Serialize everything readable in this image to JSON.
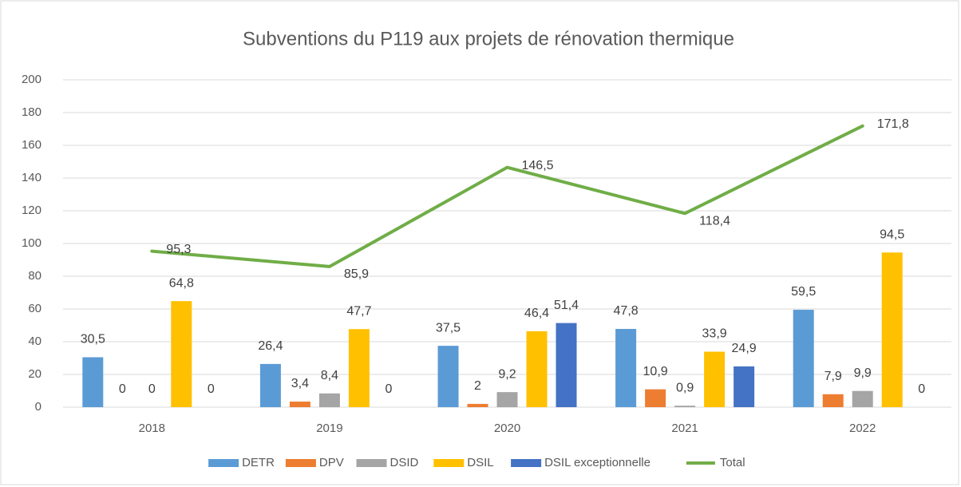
{
  "chart_data": {
    "type": "bar",
    "title": "Subventions du P119 aux projets de rénovation thermique",
    "categories": [
      "2018",
      "2019",
      "2020",
      "2021",
      "2022"
    ],
    "ylim": [
      0,
      200
    ],
    "yticks": [
      0,
      20,
      40,
      60,
      80,
      100,
      120,
      140,
      160,
      180,
      200
    ],
    "grid": true,
    "legend": "bottom",
    "series": [
      {
        "name": "DETR",
        "color": "#5b9bd5",
        "values": [
          30.5,
          26.4,
          37.5,
          47.8,
          59.5
        ],
        "value_labels": [
          "30,5",
          "26,4",
          "37,5",
          "47,8",
          "59,5"
        ]
      },
      {
        "name": "DPV",
        "color": "#ed7d31",
        "values": [
          0,
          3.4,
          2,
          10.9,
          7.9
        ],
        "value_labels": [
          "0",
          "3,4",
          "2",
          "10,9",
          "7,9"
        ]
      },
      {
        "name": "DSID",
        "color": "#a5a5a5",
        "values": [
          0,
          8.4,
          9.2,
          0.9,
          9.9
        ],
        "value_labels": [
          "0",
          "8,4",
          "9,2",
          "0,9",
          "9,9"
        ]
      },
      {
        "name": "DSIL",
        "color": "#ffc000",
        "values": [
          64.8,
          47.7,
          46.4,
          33.9,
          94.5
        ],
        "value_labels": [
          "64,8",
          "47,7",
          "46,4",
          "33,9",
          "94,5"
        ]
      },
      {
        "name": "DSIL exceptionnelle",
        "color": "#4472c4",
        "values": [
          0,
          0,
          51.4,
          24.9,
          0
        ],
        "value_labels": [
          "0",
          "0",
          "51,4",
          "24,9",
          "0"
        ]
      },
      {
        "name": "Total",
        "color": "#70ad47",
        "type": "line",
        "values": [
          95.3,
          85.9,
          146.5,
          118.4,
          171.8
        ],
        "value_labels": [
          "95,3",
          "85,9",
          "146,5",
          "118,4",
          "171,8"
        ]
      }
    ]
  }
}
